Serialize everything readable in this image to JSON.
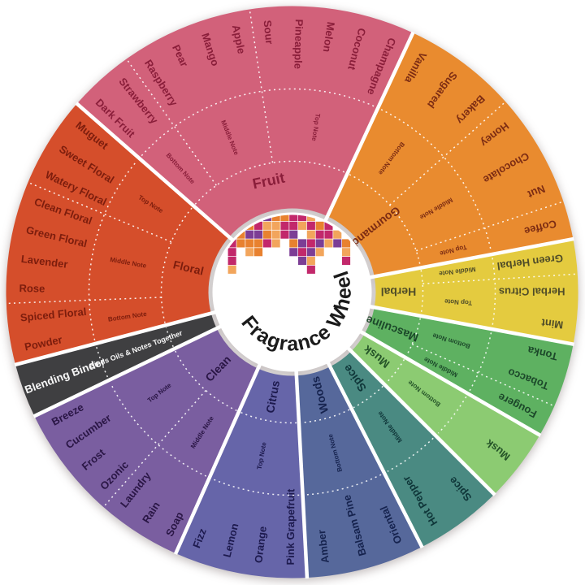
{
  "background": "#ffffff",
  "center": {
    "title": "Fragrance Wheel",
    "title_color": "#1b1b1b",
    "mosaic_colors": [
      "#c2286b",
      "#7c3e95",
      "#e8812f",
      "#f2a55c"
    ]
  },
  "wheel": {
    "gap_color": "#ffffff",
    "dotted_line_color": "#ffffff",
    "segments": [
      {
        "name": "fruit",
        "label": "Fruit",
        "color": "#d2617a",
        "text_color": "#8a1e3a",
        "start": -48.8,
        "end": 25,
        "label_orientation": "tangential",
        "sections": [
          {
            "label": "Bottom Note",
            "items": [
              "Dark Fruit",
              "Strawberry"
            ]
          },
          {
            "label": "Middle Note",
            "items": [
              "Raspberry",
              "Pear",
              "Mango",
              "Apple"
            ]
          },
          {
            "label": "Top Note",
            "items": [
              "Sour",
              "Pineapple",
              "Melon",
              "Coconut",
              "Champagne"
            ]
          }
        ]
      },
      {
        "name": "gourmand",
        "label": "Gourmand",
        "color": "#e98b2f",
        "text_color": "#7c2c13",
        "start": 25,
        "end": 79.3,
        "label_orientation": "radial",
        "sections": [
          {
            "label": "Bottom Note",
            "items": [
              "Vanilla",
              "Sugared",
              "Bakery"
            ]
          },
          {
            "label": "Middle Note",
            "items": [
              "Honey",
              "Chocolate",
              "Nut"
            ]
          },
          {
            "label": "Top Note",
            "items": [
              "Coffee"
            ]
          }
        ]
      },
      {
        "name": "herbal",
        "label": "Herbal",
        "color": "#e4cb3f",
        "text_color": "#4f4c28",
        "start": 79.3,
        "end": 100.5,
        "label_orientation": "radial",
        "sections": [
          {
            "label": "Middle Note",
            "items": [
              "Green Herbal"
            ]
          },
          {
            "label": "Top Note",
            "items": [
              "Herbal Citrus",
              "Mint"
            ]
          }
        ]
      },
      {
        "name": "masculine",
        "label": "Masculine",
        "color": "#5eb161",
        "text_color": "#1c482a",
        "start": 100.5,
        "end": 120,
        "label_orientation": "radial",
        "sections": [
          {
            "label": "Bottom Note",
            "items": [
              "Tonka",
              "Tobacco"
            ]
          },
          {
            "label": "Middle Note",
            "items": [
              "Fougere"
            ]
          }
        ]
      },
      {
        "name": "musk",
        "label": "Musk",
        "color": "#8ccb72",
        "text_color": "#265529",
        "start": 120,
        "end": 135,
        "label_orientation": "radial",
        "sections": [
          {
            "label": "Bottom Note",
            "items": [
              "Musk"
            ]
          }
        ]
      },
      {
        "name": "spice",
        "label": "Spice",
        "color": "#4a8a82",
        "text_color": "#0f3639",
        "start": 135,
        "end": 153,
        "label_orientation": "radial",
        "sections": [
          {
            "label": "Middle Note",
            "items": [
              "Spice",
              "Hot Pepper"
            ]
          }
        ]
      },
      {
        "name": "woods",
        "label": "Woods",
        "color": "#56689b",
        "text_color": "#16234e",
        "start": 153,
        "end": 177,
        "label_orientation": "radial",
        "sections": [
          {
            "label": "Bottom Note",
            "items": [
              "Oriental",
              "Balsam Pine",
              "Amber"
            ]
          }
        ]
      },
      {
        "name": "citrus",
        "label": "Citrus",
        "color": "#6665a9",
        "text_color": "#1d1a4e",
        "start": 177,
        "end": 204,
        "label_orientation": "radial",
        "sections": [
          {
            "label": "Top Note",
            "items": [
              "Pink Grapefruit",
              "Orange",
              "Lemon",
              "Fizz"
            ]
          }
        ]
      },
      {
        "name": "clean",
        "label": "Clean",
        "color": "#7a5ea0",
        "text_color": "#2a1645",
        "start": 204,
        "end": 244.3,
        "label_orientation": "radial",
        "sections": [
          {
            "label": "Middle Note",
            "items": [
              "Soap",
              "Rain",
              "Laundry"
            ]
          },
          {
            "label": "Top Note",
            "items": [
              "Ozonic",
              "Frost",
              "Cucumber",
              "Breeze"
            ]
          }
        ]
      },
      {
        "name": "blending-binder",
        "label": "Blending Binder",
        "color": "#3f3f41",
        "text_color": "#f7f7f7",
        "start": 244.3,
        "end": 255.3,
        "label_orientation": "radial",
        "binder": true,
        "sections": [
          {
            "label": "Binds Oils & Notes Together",
            "items": []
          }
        ]
      },
      {
        "name": "floral",
        "label": "Floral",
        "color": "#d54e2b",
        "text_color": "#7c1d0d",
        "start": 255.3,
        "end": 311.2,
        "label_orientation": "radial",
        "sections": [
          {
            "label": "Bottom Note",
            "items": [
              "Powder",
              "Spiced Floral"
            ]
          },
          {
            "label": "Middle Note",
            "items": [
              "Rose",
              "Lavender",
              "Green Floral",
              "Clean Floral"
            ]
          },
          {
            "label": "Top Note",
            "items": [
              "Watery Floral",
              "Sweet Floral",
              "Muguet"
            ]
          }
        ]
      }
    ]
  }
}
